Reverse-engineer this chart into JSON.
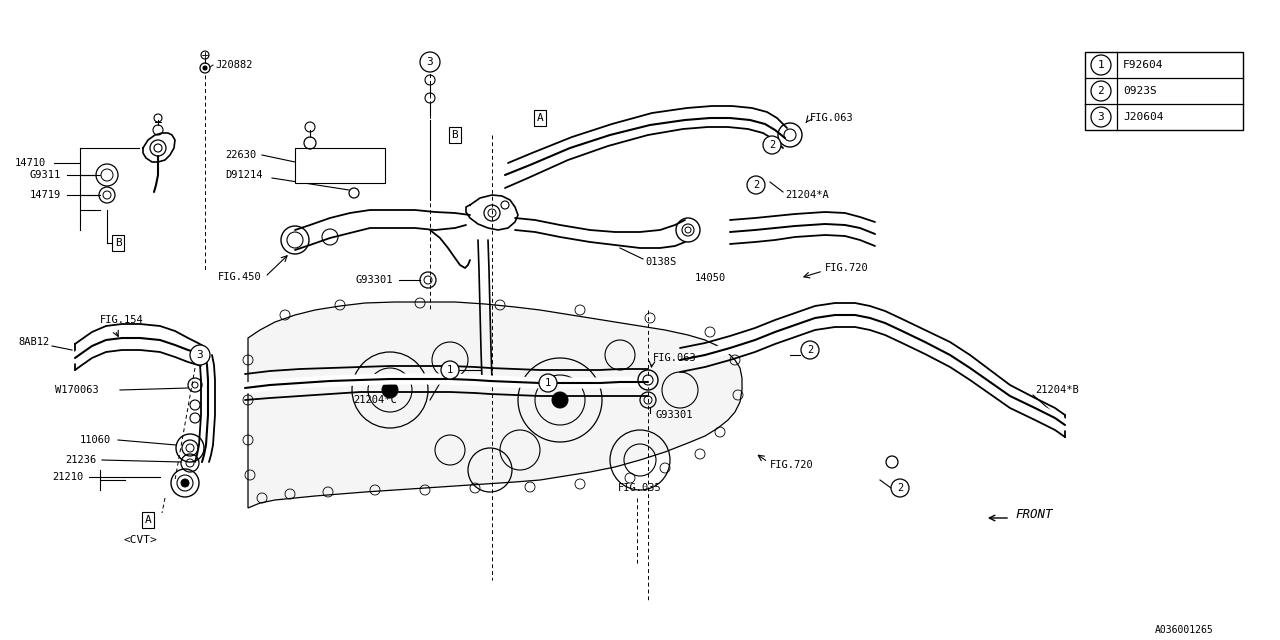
{
  "bg_color": "#ffffff",
  "fig_code": "A036001265",
  "legend_items": [
    {
      "num": "1",
      "code": "F92604"
    },
    {
      "num": "2",
      "code": "0923S"
    },
    {
      "num": "3",
      "code": "J20604"
    }
  ]
}
